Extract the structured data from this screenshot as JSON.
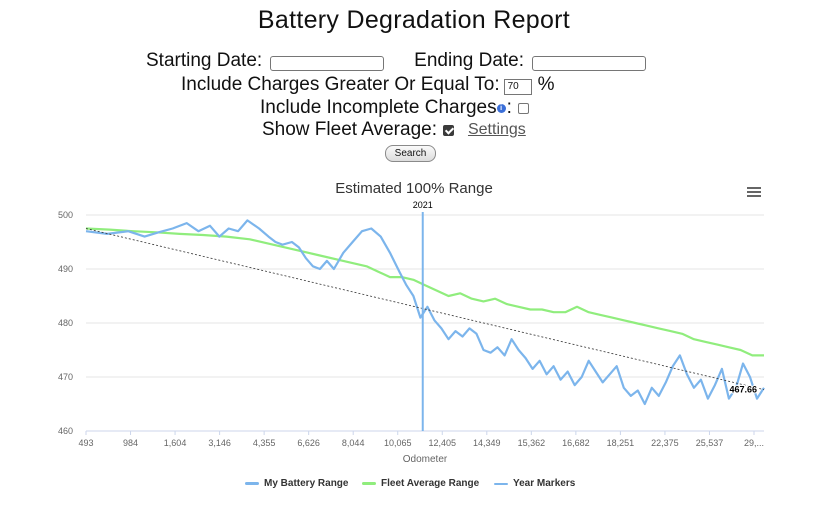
{
  "page": {
    "title": "Battery Degradation Report"
  },
  "form": {
    "starting_date_label": "Starting Date:",
    "starting_date_value": "",
    "ending_date_label": "Ending Date:",
    "ending_date_value": "",
    "charge_threshold_label": "Include Charges Greater Or Equal To:",
    "charge_threshold_value": "70",
    "charge_threshold_unit": "%",
    "incomplete_label": "Include Incomplete Charges",
    "incomplete_checked": false,
    "fleet_avg_label": "Show Fleet Average:",
    "fleet_avg_checked": true,
    "settings_link": "Settings",
    "search_button": "Search"
  },
  "colors": {
    "my_battery": "#7cb5ec",
    "fleet_average": "#90ed7d",
    "year_marker": "#7cb5ec",
    "trend": "#333333"
  },
  "chart_data": {
    "type": "line",
    "title": "Estimated 100% Range",
    "xlabel": "Odometer",
    "ylabel": "",
    "xlim": [
      493,
      29500
    ],
    "ylim": [
      460,
      500
    ],
    "yticks": [
      460,
      470,
      480,
      490,
      500
    ],
    "xtick_labels": [
      "493",
      "984",
      "1,604",
      "3,146",
      "4,355",
      "6,626",
      "8,044",
      "10,065",
      "12,405",
      "14,349",
      "15,362",
      "16,682",
      "18,251",
      "22,375",
      "25,537",
      "29,..."
    ],
    "year_marker": {
      "label": "2021",
      "x": 14900
    },
    "trend_end_label": "467.66",
    "trend": {
      "start": [
        493,
        497.5
      ],
      "end": [
        29500,
        467.66
      ]
    },
    "legend": [
      "My Battery Range",
      "Fleet Average Range",
      "Year Markers"
    ],
    "series": [
      {
        "name": "My Battery Range",
        "points": [
          [
            493,
            497
          ],
          [
            1400,
            496.5
          ],
          [
            2300,
            497
          ],
          [
            3000,
            496
          ],
          [
            3600,
            496.8
          ],
          [
            4200,
            497.5
          ],
          [
            4800,
            498.5
          ],
          [
            5300,
            497
          ],
          [
            5800,
            498
          ],
          [
            6200,
            496
          ],
          [
            6600,
            497.5
          ],
          [
            7000,
            497
          ],
          [
            7400,
            499
          ],
          [
            7900,
            497.5
          ],
          [
            8300,
            496
          ],
          [
            8600,
            495
          ],
          [
            8900,
            494.5
          ],
          [
            9300,
            495
          ],
          [
            9600,
            494
          ],
          [
            9900,
            492
          ],
          [
            10200,
            490.5
          ],
          [
            10500,
            490
          ],
          [
            10800,
            491.5
          ],
          [
            11100,
            490
          ],
          [
            11500,
            493
          ],
          [
            11900,
            495
          ],
          [
            12300,
            497
          ],
          [
            12700,
            497.5
          ],
          [
            13100,
            496
          ],
          [
            13500,
            493
          ],
          [
            13900,
            489.5
          ],
          [
            14200,
            487
          ],
          [
            14500,
            485
          ],
          [
            14800,
            481
          ],
          [
            15100,
            483
          ],
          [
            15400,
            480.5
          ],
          [
            15700,
            479
          ],
          [
            16000,
            477
          ],
          [
            16300,
            478.5
          ],
          [
            16600,
            477.5
          ],
          [
            16900,
            479
          ],
          [
            17200,
            478
          ],
          [
            17500,
            475
          ],
          [
            17800,
            474.5
          ],
          [
            18100,
            475.5
          ],
          [
            18400,
            474
          ],
          [
            18700,
            477
          ],
          [
            19000,
            475
          ],
          [
            19300,
            473.5
          ],
          [
            19600,
            471.5
          ],
          [
            19900,
            473
          ],
          [
            20200,
            470.5
          ],
          [
            20500,
            472
          ],
          [
            20800,
            469.5
          ],
          [
            21100,
            471
          ],
          [
            21400,
            468.5
          ],
          [
            21700,
            470
          ],
          [
            22000,
            473
          ],
          [
            22300,
            471
          ],
          [
            22600,
            469
          ],
          [
            22900,
            470.5
          ],
          [
            23200,
            472
          ],
          [
            23500,
            468
          ],
          [
            23800,
            466.5
          ],
          [
            24100,
            467.5
          ],
          [
            24400,
            465
          ],
          [
            24700,
            468
          ],
          [
            25000,
            466.5
          ],
          [
            25300,
            469
          ],
          [
            25600,
            472
          ],
          [
            25900,
            474
          ],
          [
            26200,
            470.5
          ],
          [
            26500,
            468
          ],
          [
            26800,
            469.5
          ],
          [
            27100,
            466
          ],
          [
            27400,
            468.5
          ],
          [
            27700,
            471.5
          ],
          [
            28000,
            466
          ],
          [
            28300,
            468
          ],
          [
            28600,
            472.5
          ],
          [
            28900,
            470
          ],
          [
            29200,
            466
          ],
          [
            29500,
            468
          ]
        ]
      },
      {
        "name": "Fleet Average Range",
        "points": [
          [
            493,
            497.5
          ],
          [
            1500,
            497.3
          ],
          [
            2500,
            497
          ],
          [
            3500,
            496.8
          ],
          [
            4500,
            496.5
          ],
          [
            5500,
            496.3
          ],
          [
            6500,
            496
          ],
          [
            7500,
            495.5
          ],
          [
            8500,
            494.5
          ],
          [
            9500,
            493.5
          ],
          [
            10500,
            492.5
          ],
          [
            11500,
            491.5
          ],
          [
            12500,
            490.5
          ],
          [
            13000,
            489.5
          ],
          [
            13500,
            488.5
          ],
          [
            14000,
            488.5
          ],
          [
            14500,
            488
          ],
          [
            15000,
            487
          ],
          [
            15500,
            486
          ],
          [
            16000,
            485
          ],
          [
            16500,
            485.5
          ],
          [
            17000,
            484.5
          ],
          [
            17500,
            484
          ],
          [
            18000,
            484.5
          ],
          [
            18500,
            483.5
          ],
          [
            19000,
            483
          ],
          [
            19500,
            482.5
          ],
          [
            20000,
            482.5
          ],
          [
            20500,
            482
          ],
          [
            21000,
            482
          ],
          [
            21500,
            483
          ],
          [
            22000,
            482
          ],
          [
            22500,
            481.5
          ],
          [
            23000,
            481
          ],
          [
            23500,
            480.5
          ],
          [
            24000,
            480
          ],
          [
            24500,
            479.5
          ],
          [
            25000,
            479
          ],
          [
            25500,
            478.5
          ],
          [
            26000,
            478
          ],
          [
            26500,
            477
          ],
          [
            27000,
            476.5
          ],
          [
            27500,
            476
          ],
          [
            28000,
            475.5
          ],
          [
            28500,
            475
          ],
          [
            29000,
            474
          ],
          [
            29500,
            474
          ]
        ]
      }
    ]
  }
}
